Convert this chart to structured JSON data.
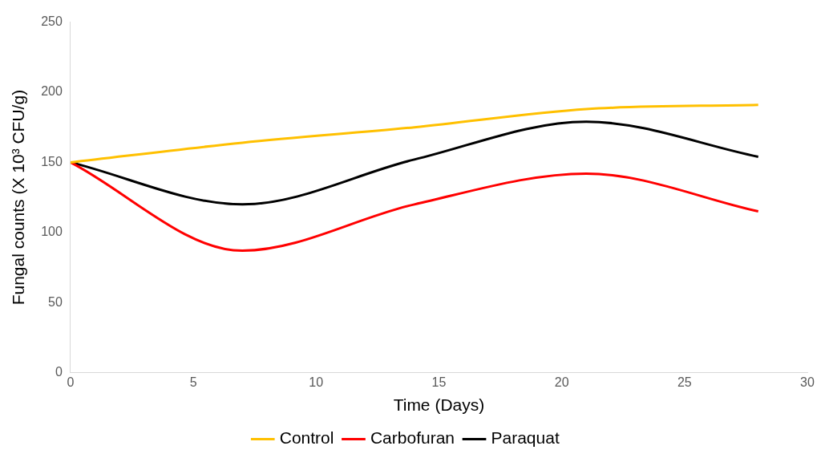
{
  "chart_data": {
    "type": "line",
    "xlabel": "Time (Days)",
    "ylabel": "Fungal counts (X 10³ CFU/g)",
    "x": [
      0,
      7,
      14,
      21,
      28
    ],
    "xlim": [
      0,
      30
    ],
    "xticks": [
      0,
      5,
      10,
      15,
      20,
      25,
      30
    ],
    "ylim": [
      0,
      250
    ],
    "yticks": [
      0,
      50,
      100,
      150,
      200,
      250
    ],
    "grid": false,
    "legend": "bottom",
    "marker": "none",
    "line_style": "solid",
    "series": [
      {
        "name": "Control",
        "color": "#ffc000",
        "values": [
          150,
          164,
          175,
          188,
          191
        ]
      },
      {
        "name": "Carbofuran",
        "color": "#ff0000",
        "values": [
          150,
          87,
          120,
          142,
          115
        ]
      },
      {
        "name": "Paraquat",
        "color": "#000000",
        "values": [
          150,
          120,
          152,
          179,
          154
        ]
      }
    ]
  }
}
